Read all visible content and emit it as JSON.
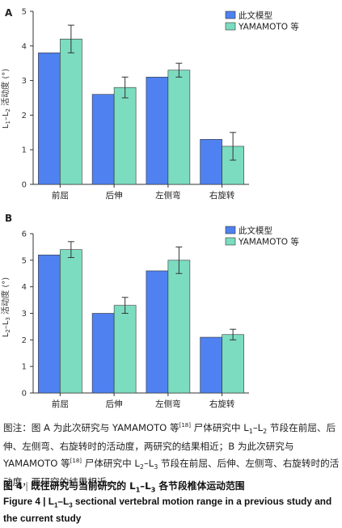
{
  "chart_data": [
    {
      "panel": "A",
      "type": "bar",
      "categories": [
        "前屈",
        "后伸",
        "左侧弯",
        "右旋转"
      ],
      "ylabel": "L1–L2 活动度 (°)",
      "ylim": [
        0,
        5
      ],
      "yticks": [
        0,
        1,
        2,
        3,
        4,
        5
      ],
      "legend_position": "top-right",
      "series": [
        {
          "name": "此文模型",
          "color": "#4f81f0",
          "values": [
            3.8,
            2.6,
            3.1,
            1.3
          ]
        },
        {
          "name": "YAMAMOTO 等",
          "color": "#7cdcc0",
          "values": [
            4.2,
            2.8,
            3.3,
            1.1
          ],
          "error": [
            0.4,
            0.3,
            0.2,
            0.4
          ]
        }
      ]
    },
    {
      "panel": "B",
      "type": "bar",
      "categories": [
        "前屈",
        "后伸",
        "左侧弯",
        "右旋转"
      ],
      "ylabel": "L2–L3 活动度 (°)",
      "ylim": [
        0,
        6
      ],
      "yticks": [
        0,
        1,
        2,
        3,
        4,
        5,
        6
      ],
      "legend_position": "top-right",
      "series": [
        {
          "name": "此文模型",
          "color": "#4f81f0",
          "values": [
            5.2,
            3.0,
            4.6,
            2.1
          ]
        },
        {
          "name": "YAMAMOTO 等",
          "color": "#7cdcc0",
          "values": [
            5.4,
            3.3,
            5.0,
            2.2
          ],
          "error": [
            0.3,
            0.3,
            0.5,
            0.2
          ]
        }
      ]
    }
  ],
  "caption": {
    "note": {
      "part1": "图注：图 A 为此次研究与 YAMAMOTO 等",
      "ref1": "[18]",
      "part2": " 尸体研究中 L",
      "s1": "1",
      "part3": "–L",
      "s2": "2",
      "part4": " 节段在前屈、后伸、左侧弯、右旋转时的活动度，两研究的结果相近；B 为此次研究与 YAMAMOTO 等",
      "ref2": "[18]",
      "part5": " 尸体研究中 L",
      "s3": "2",
      "part6": "–L",
      "s4": "3",
      "part7": " 节段在前屈、后伸、左侧弯、右旋转时的活动度，两研究的结果相近。"
    },
    "figure_cn": {
      "label": "图 4",
      "sep": "|",
      "part1": "既往研究与当前研究的 L",
      "s1": "1",
      "part2": "–L",
      "s2": "3",
      "part3": " 各节段椎体运动范围"
    },
    "figure_en": {
      "part1": "Figure 4 | L",
      "s1": "1",
      "part2": "–L",
      "s2": "3",
      "part3": " sectional vertebral motion range in a previous study and the current study"
    }
  }
}
